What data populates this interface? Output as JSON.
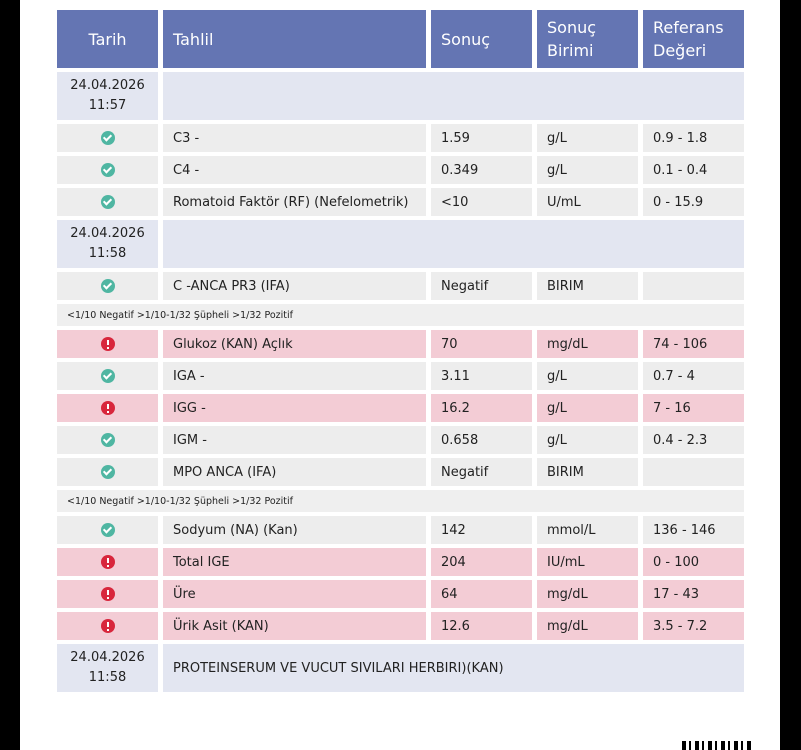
{
  "headers": {
    "date": "Tarih",
    "test": "Tahlil",
    "result": "Sonuç",
    "unit": "Sonuç Birimi",
    "reference": "Referans Değeri"
  },
  "groups": [
    {
      "date": "24.04.2026",
      "time": "11:57",
      "title": "",
      "rows": [
        {
          "status": "ok",
          "test": "C3 -",
          "result": "1.59",
          "unit": "g/L",
          "reference": "0.9 - 1.8"
        },
        {
          "status": "ok",
          "test": "C4 -",
          "result": "0.349",
          "unit": "g/L",
          "reference": "0.1 - 0.4"
        },
        {
          "status": "ok",
          "test": "Romatoid Faktör (RF) (Nefelometrik)",
          "result": "<10",
          "unit": "U/mL",
          "reference": "0 - 15.9"
        }
      ]
    },
    {
      "date": "24.04.2026",
      "time": "11:58",
      "title": "",
      "rows": [
        {
          "status": "ok",
          "test": "C -ANCA PR3 (IFA)",
          "result": "Negatif",
          "unit": "BIRIM",
          "reference": ""
        },
        {
          "note": "<1/10 Negatif >1/10-1/32 Şüpheli >1/32 Pozitif"
        },
        {
          "status": "alert",
          "test": "Glukoz (KAN) Açlık",
          "result": "70",
          "unit": "mg/dL",
          "reference": "74 - 106"
        },
        {
          "status": "ok",
          "test": "IGA -",
          "result": "3.11",
          "unit": "g/L",
          "reference": "0.7 - 4"
        },
        {
          "status": "alert",
          "test": "IGG -",
          "result": "16.2",
          "unit": "g/L",
          "reference": "7 - 16"
        },
        {
          "status": "ok",
          "test": "IGM -",
          "result": "0.658",
          "unit": "g/L",
          "reference": "0.4 - 2.3"
        },
        {
          "status": "ok",
          "test": "MPO ANCA (IFA)",
          "result": "Negatif",
          "unit": "BIRIM",
          "reference": ""
        },
        {
          "note": "<1/10 Negatif >1/10-1/32 Şüpheli >1/32 Pozitif"
        },
        {
          "status": "ok",
          "test": "Sodyum (NA) (Kan)",
          "result": "142",
          "unit": "mmol/L",
          "reference": "136 - 146"
        },
        {
          "status": "alert",
          "test": "Total IGE",
          "result": "204",
          "unit": "IU/mL",
          "reference": "0 - 100"
        },
        {
          "status": "alert",
          "test": "Üre",
          "result": "64",
          "unit": "mg/dL",
          "reference": "17 - 43"
        },
        {
          "status": "alert",
          "test": "Ürik Asit (KAN)",
          "result": "12.6",
          "unit": "mg/dL",
          "reference": "3.5 - 7.2"
        }
      ]
    },
    {
      "date": "24.04.2026",
      "time": "11:58",
      "title": "PROTEINSERUM VE VUCUT SIVILARI HERBIRI)(KAN)",
      "rows": []
    }
  ],
  "colors": {
    "header": "#6475b3",
    "ok": "#4fb6a2",
    "alert": "#d8263c",
    "abnormal_row": "#f3ccd5"
  }
}
